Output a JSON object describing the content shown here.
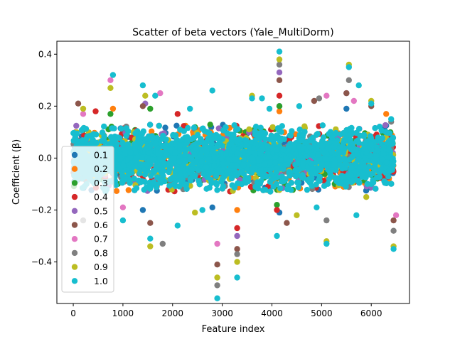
{
  "chart_data": {
    "type": "scatter",
    "title": "Scatter of beta vectors (Yale_MultiDorm)",
    "xlabel": "Feature index",
    "ylabel": "Coefficient (β)",
    "xlim": [
      -330,
      6770
    ],
    "ylim": [
      -0.56,
      0.45
    ],
    "x_ticks": [
      0,
      1000,
      2000,
      3000,
      4000,
      5000,
      6000
    ],
    "x_tick_labels": [
      "0",
      "1000",
      "2000",
      "3000",
      "4000",
      "5000",
      "6000"
    ],
    "y_ticks": [
      -0.4,
      -0.2,
      0.0,
      0.2,
      0.4
    ],
    "y_tick_labels": [
      "−0.4",
      "−0.2",
      "0.0",
      "0.2",
      "0.4"
    ],
    "grid": false,
    "legend_position": "left",
    "legend": [
      "0.1",
      "0.2",
      "0.3",
      "0.4",
      "0.5",
      "0.6",
      "0.7",
      "0.8",
      "0.9",
      "1.0"
    ],
    "colors": [
      "#1f77b4",
      "#ff7f0e",
      "#2ca02c",
      "#d62728",
      "#9467bd",
      "#8c564b",
      "#e377c2",
      "#7f7f7f",
      "#bcbd22",
      "#17becf"
    ],
    "feature_count": 6450,
    "dense_band": [
      -0.13,
      0.13
    ],
    "series": [
      {
        "name": "0.1",
        "points": [
          [
            4150,
            0.2
          ],
          [
            4150,
            -0.21
          ],
          [
            1400,
            -0.2
          ],
          [
            5500,
            0.19
          ],
          [
            2800,
            -0.19
          ]
        ]
      },
      {
        "name": "0.2",
        "points": [
          [
            4150,
            0.18
          ],
          [
            800,
            0.19
          ],
          [
            3300,
            -0.2
          ],
          [
            6300,
            0.17
          ]
        ]
      },
      {
        "name": "0.3",
        "points": [
          [
            750,
            0.17
          ],
          [
            4100,
            -0.18
          ],
          [
            4150,
            0.2
          ],
          [
            1550,
            0.19
          ]
        ]
      },
      {
        "name": "0.4",
        "points": [
          [
            450,
            0.18
          ],
          [
            4150,
            0.24
          ],
          [
            3300,
            -0.27
          ],
          [
            4100,
            -0.2
          ],
          [
            2100,
            0.17
          ]
        ]
      },
      {
        "name": "0.5",
        "points": [
          [
            4150,
            0.33
          ],
          [
            1450,
            0.21
          ],
          [
            5500,
            0.25
          ],
          [
            3300,
            -0.3
          ]
        ]
      },
      {
        "name": "0.6",
        "points": [
          [
            100,
            0.21
          ],
          [
            1400,
            0.2
          ],
          [
            3300,
            -0.35
          ],
          [
            2900,
            -0.41
          ],
          [
            4150,
            0.3
          ],
          [
            1550,
            -0.25
          ],
          [
            4300,
            -0.25
          ],
          [
            5500,
            0.25
          ],
          [
            4850,
            0.22
          ],
          [
            6000,
            0.2
          ],
          [
            6450,
            -0.24
          ]
        ]
      },
      {
        "name": "0.7",
        "points": [
          [
            750,
            0.3
          ],
          [
            1750,
            0.25
          ],
          [
            5100,
            0.24
          ],
          [
            5650,
            0.22
          ],
          [
            6500,
            -0.22
          ],
          [
            2900,
            -0.33
          ],
          [
            200,
            0.17
          ],
          [
            1000,
            -0.19
          ]
        ]
      },
      {
        "name": "0.8",
        "points": [
          [
            2900,
            -0.49
          ],
          [
            3300,
            -0.37
          ],
          [
            4150,
            0.36
          ],
          [
            5100,
            -0.24
          ],
          [
            6450,
            -0.28
          ],
          [
            4950,
            0.23
          ],
          [
            1800,
            -0.33
          ],
          [
            6400,
            0.14
          ],
          [
            200,
            -0.24
          ],
          [
            5550,
            0.3
          ]
        ]
      },
      {
        "name": "0.9",
        "points": [
          [
            2900,
            -0.46
          ],
          [
            3300,
            -0.4
          ],
          [
            4150,
            0.38
          ],
          [
            5550,
            0.36
          ],
          [
            1550,
            -0.34
          ],
          [
            5100,
            -0.32
          ],
          [
            6450,
            -0.34
          ],
          [
            750,
            0.27
          ],
          [
            1450,
            0.24
          ],
          [
            3600,
            0.24
          ],
          [
            200,
            0.19
          ],
          [
            4500,
            -0.22
          ],
          [
            2450,
            -0.21
          ],
          [
            6000,
            0.22
          ],
          [
            5900,
            -0.15
          ]
        ]
      },
      {
        "name": "1.0",
        "points": [
          [
            4150,
            0.41
          ],
          [
            2900,
            -0.54
          ],
          [
            3300,
            -0.46
          ],
          [
            800,
            0.32
          ],
          [
            1400,
            0.28
          ],
          [
            1550,
            -0.31
          ],
          [
            5100,
            -0.33
          ],
          [
            6450,
            -0.35
          ],
          [
            5550,
            0.35
          ],
          [
            5750,
            0.28
          ],
          [
            2800,
            0.26
          ],
          [
            3600,
            0.23
          ],
          [
            3800,
            0.23
          ],
          [
            4100,
            -0.3
          ],
          [
            1650,
            0.24
          ],
          [
            2100,
            -0.26
          ],
          [
            6000,
            0.21
          ],
          [
            6400,
            0.15
          ],
          [
            5700,
            -0.22
          ],
          [
            3950,
            0.19
          ],
          [
            1000,
            -0.24
          ],
          [
            2600,
            -0.2
          ],
          [
            4550,
            0.2
          ],
          [
            4900,
            -0.19
          ],
          [
            2350,
            0.19
          ]
        ]
      }
    ]
  }
}
